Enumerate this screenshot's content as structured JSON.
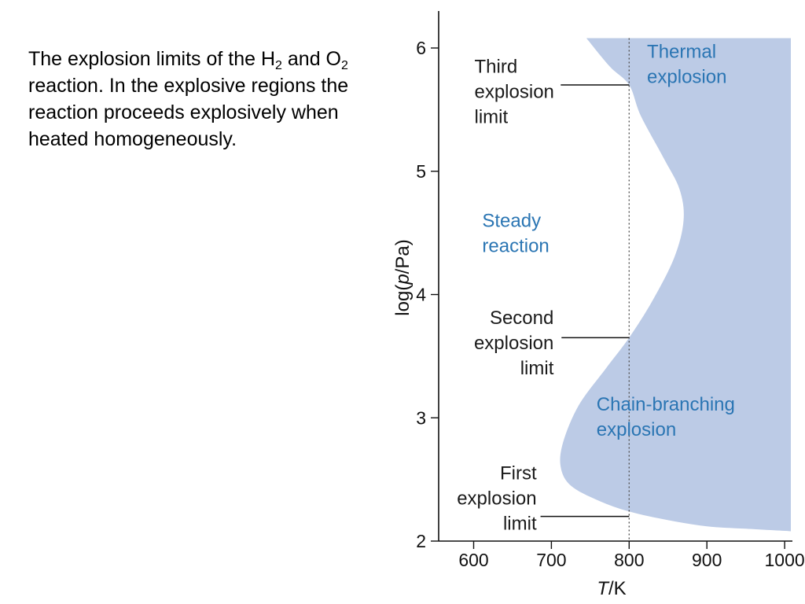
{
  "caption": {
    "before_h": "The explosion limits of the H",
    "h_sub": "2",
    "between": " and O",
    "o_sub": "2",
    "after": " reaction. In the explosive regions the reaction proceeds explosively when heated homogeneously."
  },
  "chart_data": {
    "type": "area",
    "xlabel_italic": "T",
    "xlabel_rest": "/K",
    "ylabel_prefix": "log(",
    "ylabel_italic": "p",
    "ylabel_suffix": "/Pa)",
    "xlim": [
      555,
      1010
    ],
    "ylim": [
      2.0,
      6.3
    ],
    "x_ticks": [
      600,
      700,
      800,
      900,
      1000
    ],
    "y_ticks": [
      2,
      3,
      4,
      5,
      6
    ],
    "grid": false,
    "reference_line": {
      "x": 800,
      "style": "dotted"
    },
    "explosion_boundary": [
      {
        "x": 1008,
        "y": 2.08
      },
      {
        "x": 950,
        "y": 2.1
      },
      {
        "x": 900,
        "y": 2.12
      },
      {
        "x": 850,
        "y": 2.17
      },
      {
        "x": 800,
        "y": 2.24
      },
      {
        "x": 760,
        "y": 2.33
      },
      {
        "x": 725,
        "y": 2.45
      },
      {
        "x": 712,
        "y": 2.6
      },
      {
        "x": 715,
        "y": 2.8
      },
      {
        "x": 735,
        "y": 3.1
      },
      {
        "x": 770,
        "y": 3.4
      },
      {
        "x": 800,
        "y": 3.65
      },
      {
        "x": 830,
        "y": 3.95
      },
      {
        "x": 858,
        "y": 4.3
      },
      {
        "x": 870,
        "y": 4.6
      },
      {
        "x": 865,
        "y": 4.85
      },
      {
        "x": 845,
        "y": 5.1
      },
      {
        "x": 815,
        "y": 5.45
      },
      {
        "x": 800,
        "y": 5.7
      },
      {
        "x": 775,
        "y": 5.85
      },
      {
        "x": 745,
        "y": 6.08
      }
    ],
    "region_top_y": 6.08,
    "region_right_x": 1008,
    "fill_color": "#bccbe6",
    "region_labels": [
      {
        "lines": [
          "Thermal",
          "explosion"
        ],
        "x": 823,
        "y": 5.92,
        "color": "#2a75b3"
      },
      {
        "lines": [
          "Steady",
          "reaction"
        ],
        "x": 611,
        "y": 4.55,
        "color": "#2a75b3"
      },
      {
        "lines": [
          "Chain-branching",
          "explosion"
        ],
        "x": 758,
        "y": 3.06,
        "color": "#2a75b3"
      }
    ],
    "limit_annotations": [
      {
        "lines": [
          "Third",
          "explosion",
          "limit"
        ],
        "text_x": 601,
        "text_y": 5.8,
        "anchor": "start",
        "line_from_x": 712,
        "line_to_x": 800,
        "line_y": 5.7
      },
      {
        "lines": [
          "Second",
          "explosion",
          "limit"
        ],
        "text_x": 703,
        "text_y": 3.76,
        "anchor": "end",
        "line_from_x": 713,
        "line_to_x": 800,
        "line_y": 3.65
      },
      {
        "lines": [
          "First",
          "explosion",
          "limit"
        ],
        "text_x": 681,
        "text_y": 2.5,
        "anchor": "end",
        "line_from_x": 686,
        "line_to_x": 800,
        "line_y": 2.2
      }
    ],
    "colors": {
      "text": "#1a1a1a",
      "region_text": "#2a75b3"
    }
  }
}
